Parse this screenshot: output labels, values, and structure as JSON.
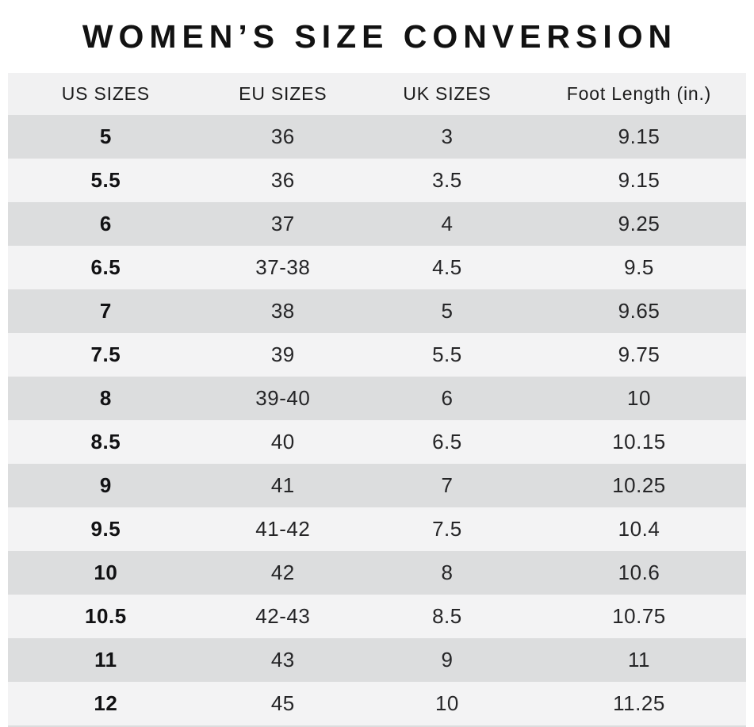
{
  "page_title": "WOMEN’S SIZE CONVERSION",
  "chart_data": {
    "type": "table",
    "title": "WOMEN’S SIZE CONVERSION",
    "columns": [
      "US SIZES",
      "EU SIZES",
      "UK SIZES",
      "Foot Length (in.)"
    ],
    "rows": [
      [
        "5",
        "36",
        "3",
        "9.15"
      ],
      [
        "5.5",
        "36",
        "3.5",
        "9.15"
      ],
      [
        "6",
        "37",
        "4",
        "9.25"
      ],
      [
        "6.5",
        "37-38",
        "4.5",
        "9.5"
      ],
      [
        "7",
        "38",
        "5",
        "9.65"
      ],
      [
        "7.5",
        "39",
        "5.5",
        "9.75"
      ],
      [
        "8",
        "39-40",
        "6",
        "10"
      ],
      [
        "8.5",
        "40",
        "6.5",
        "10.15"
      ],
      [
        "9",
        "41",
        "7",
        "10.25"
      ],
      [
        "9.5",
        "41-42",
        "7.5",
        "10.4"
      ],
      [
        "10",
        "42",
        "8",
        "10.6"
      ],
      [
        "10.5",
        "42-43",
        "8.5",
        "10.75"
      ],
      [
        "11",
        "43",
        "9",
        "11"
      ],
      [
        "12",
        "45",
        "10",
        "11.25"
      ]
    ],
    "layout_hints": {
      "row_striping": "odd rows dark gray, even rows light gray",
      "us_column_bold": true
    }
  },
  "colors": {
    "row_dark": "#dcddde",
    "row_light": "#f3f3f4",
    "header_bg": "#f1f1f2",
    "title_text": "#121212",
    "body_text": "#252527"
  }
}
